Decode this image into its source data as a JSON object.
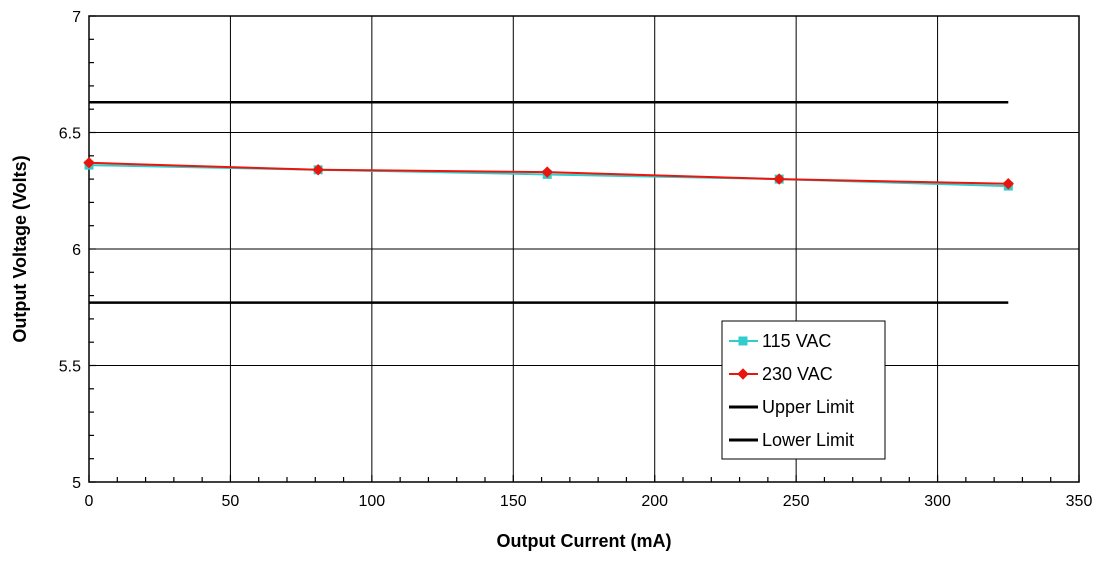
{
  "chart_data": {
    "type": "line",
    "title": "",
    "xlabel": "Output Current (mA)",
    "ylabel": "Output Voltage (Volts)",
    "xlim": [
      0,
      350
    ],
    "ylim": [
      5,
      7
    ],
    "xticks": [
      0,
      50,
      100,
      150,
      200,
      250,
      300,
      350
    ],
    "xtick_labels": [
      "0",
      "50",
      "100",
      "150",
      "200",
      "250",
      "300",
      "350"
    ],
    "yticks": [
      5,
      5.5,
      6,
      6.5,
      7
    ],
    "ytick_labels": [
      "5",
      "5.5",
      "6",
      "6.5",
      "7"
    ],
    "grid": true,
    "legend_position": "lower-right",
    "series": [
      {
        "name": "115 VAC",
        "color": "#33cccc",
        "marker": "square",
        "x": [
          0,
          81,
          162,
          244,
          325
        ],
        "y": [
          6.36,
          6.34,
          6.32,
          6.3,
          6.27
        ]
      },
      {
        "name": "230 VAC",
        "color": "#e8160c",
        "marker": "diamond",
        "x": [
          0,
          81,
          162,
          244,
          325
        ],
        "y": [
          6.37,
          6.34,
          6.33,
          6.3,
          6.28
        ]
      },
      {
        "name": "Upper Limit",
        "color": "#000000",
        "marker": "none",
        "x": [
          0,
          325
        ],
        "y": [
          6.63,
          6.63
        ]
      },
      {
        "name": "Lower Limit",
        "color": "#000000",
        "marker": "none",
        "x": [
          0,
          325
        ],
        "y": [
          5.77,
          5.77
        ]
      }
    ]
  }
}
